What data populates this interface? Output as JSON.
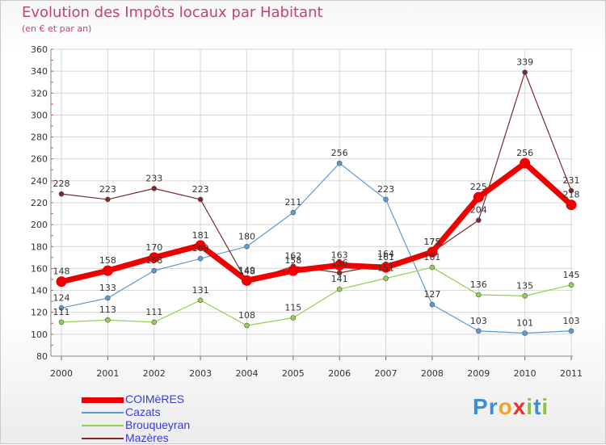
{
  "title": "Evolution des Impôts locaux par Habitant",
  "subtitle": "(en € et par an)",
  "logo": {
    "text": "Proxiti",
    "letter_colors": [
      "#3b8fd6",
      "#3b8fd6",
      "#f2a32a",
      "#e8332a",
      "#8ac43f",
      "#3b8fd6",
      "#8ac43f"
    ]
  },
  "chart_data": {
    "type": "line",
    "title": "Evolution des Impôts locaux par Habitant",
    "subtitle": "(en € et par an)",
    "xlabel": "",
    "ylabel": "",
    "x": [
      "2000",
      "2001",
      "2002",
      "2003",
      "2004",
      "2005",
      "2006",
      "2007",
      "2008",
      "2009",
      "2010",
      "2011"
    ],
    "ylim": [
      80,
      360
    ],
    "yticks": [
      80,
      100,
      120,
      140,
      160,
      180,
      200,
      220,
      240,
      260,
      280,
      300,
      320,
      340,
      360
    ],
    "grid": true,
    "legend_position": "bottom-left",
    "series": [
      {
        "name": "COIMèRES",
        "color": "#ee0000",
        "emphasis": true,
        "values": [
          148,
          158,
          170,
          181,
          149,
          158,
          163,
          161,
          175,
          225,
          256,
          218
        ]
      },
      {
        "name": "Cazats",
        "color": "#5b9bd5",
        "values": [
          124,
          133,
          158,
          169,
          180,
          211,
          256,
          223,
          127,
          103,
          101,
          103
        ]
      },
      {
        "name": "Brouqueyran",
        "color": "#92d050",
        "values": [
          111,
          113,
          111,
          131,
          108,
          115,
          141,
          151,
          161,
          136,
          135,
          145
        ]
      },
      {
        "name": "Mazères",
        "color": "#7b2a2a",
        "values": [
          228,
          223,
          233,
          223,
          148,
          162,
          156,
          164,
          175,
          204,
          339,
          231
        ]
      }
    ]
  }
}
